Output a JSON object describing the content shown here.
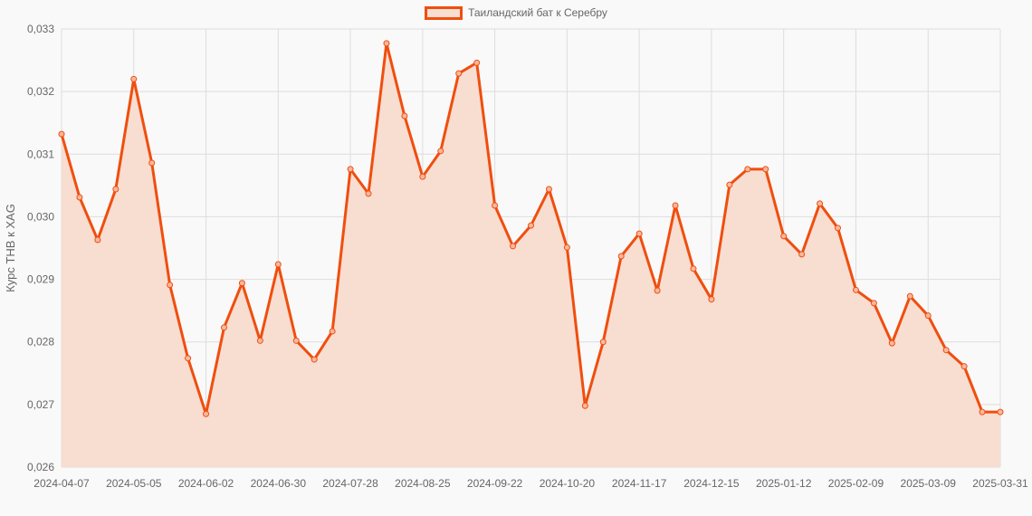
{
  "chart_data": {
    "type": "line",
    "title": "",
    "xlabel": "",
    "ylabel": "Курс THB к XAG",
    "ylim": [
      0.026,
      0.033
    ],
    "yticks": [
      "0,026",
      "0,027",
      "0,028",
      "0,029",
      "0,030",
      "0,031",
      "0,032",
      "0,033"
    ],
    "grid": true,
    "legend_position": "top",
    "fill": true,
    "colors": {
      "line": "#f04e0e",
      "fill": "#f8ddd1",
      "background": "#f9f9f9",
      "grid": "#dddddd"
    },
    "x": [
      "2024-04-07",
      "2024-04-14",
      "2024-04-21",
      "2024-04-28",
      "2024-05-05",
      "2024-05-12",
      "2024-05-19",
      "2024-05-26",
      "2024-06-02",
      "2024-06-09",
      "2024-06-16",
      "2024-06-23",
      "2024-06-30",
      "2024-07-07",
      "2024-07-14",
      "2024-07-21",
      "2024-07-28",
      "2024-08-04",
      "2024-08-11",
      "2024-08-18",
      "2024-08-25",
      "2024-09-01",
      "2024-09-08",
      "2024-09-15",
      "2024-09-22",
      "2024-09-29",
      "2024-10-06",
      "2024-10-13",
      "2024-10-20",
      "2024-10-27",
      "2024-11-03",
      "2024-11-10",
      "2024-11-17",
      "2024-11-24",
      "2024-12-01",
      "2024-12-08",
      "2024-12-15",
      "2024-12-22",
      "2024-12-29",
      "2025-01-05",
      "2025-01-12",
      "2025-01-19",
      "2025-01-26",
      "2025-02-02",
      "2025-02-09",
      "2025-02-16",
      "2025-02-23",
      "2025-03-02",
      "2025-03-09",
      "2025-03-16",
      "2025-03-23",
      "2025-03-30",
      "2025-03-31"
    ],
    "xticks": [
      "2024-04-07",
      "2024-05-05",
      "2024-06-02",
      "2024-06-30",
      "2024-07-28",
      "2024-08-25",
      "2024-09-22",
      "2024-10-20",
      "2024-11-17",
      "2024-12-15",
      "2025-01-12",
      "2025-02-09",
      "2025-03-09",
      "2025-03-31"
    ],
    "series": [
      {
        "name": "Таиландский бат к Серебру",
        "values": [
          0.03132,
          0.03031,
          0.02963,
          0.03044,
          0.0322,
          0.03086,
          0.02891,
          0.02774,
          0.02685,
          0.02823,
          0.02894,
          0.02802,
          0.02924,
          0.02802,
          0.02772,
          0.02817,
          0.03076,
          0.03037,
          0.03277,
          0.03161,
          0.03064,
          0.03105,
          0.03229,
          0.03246,
          0.03018,
          0.02953,
          0.02986,
          0.03044,
          0.02951,
          0.02698,
          0.028,
          0.02937,
          0.02973,
          0.02882,
          0.03018,
          0.02917,
          0.02868,
          0.03051,
          0.03076,
          0.03076,
          0.02969,
          0.0294,
          0.03021,
          0.02982,
          0.02883,
          0.02862,
          0.02798,
          0.02873,
          0.02842,
          0.02787,
          0.02761,
          0.02688,
          0.02688
        ]
      }
    ]
  }
}
